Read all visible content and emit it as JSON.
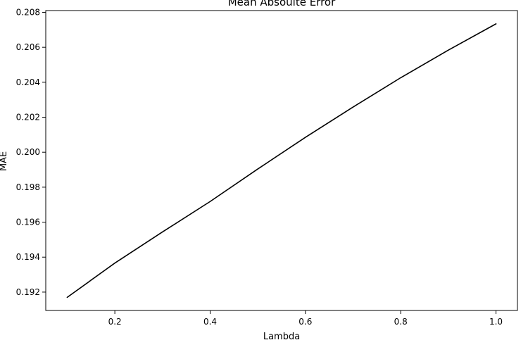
{
  "chart_data": {
    "type": "line",
    "title": "Mean Absoulte Error",
    "xlabel": "Lambda",
    "ylabel": "MAE",
    "xlim": [
      0.055,
      1.045
    ],
    "ylim": [
      0.19095,
      0.2081
    ],
    "x_ticks": [
      0.2,
      0.4,
      0.6,
      0.8,
      1.0
    ],
    "x_tick_labels": [
      "0.2",
      "0.4",
      "0.6",
      "0.8",
      "1.0"
    ],
    "y_ticks": [
      0.192,
      0.194,
      0.196,
      0.198,
      0.2,
      0.202,
      0.204,
      0.206,
      0.208
    ],
    "y_tick_labels": [
      "0.192",
      "0.194",
      "0.196",
      "0.198",
      "0.200",
      "0.202",
      "0.204",
      "0.206",
      "0.208"
    ],
    "grid": false,
    "series": [
      {
        "color": "#000000",
        "x": [
          0.1,
          0.2,
          0.3,
          0.4,
          0.5,
          0.6,
          0.7,
          0.8,
          0.9,
          1.0
        ],
        "y": [
          0.1917,
          0.19366,
          0.19544,
          0.19718,
          0.19904,
          0.20085,
          0.20258,
          0.20426,
          0.20584,
          0.20734
        ]
      }
    ]
  }
}
